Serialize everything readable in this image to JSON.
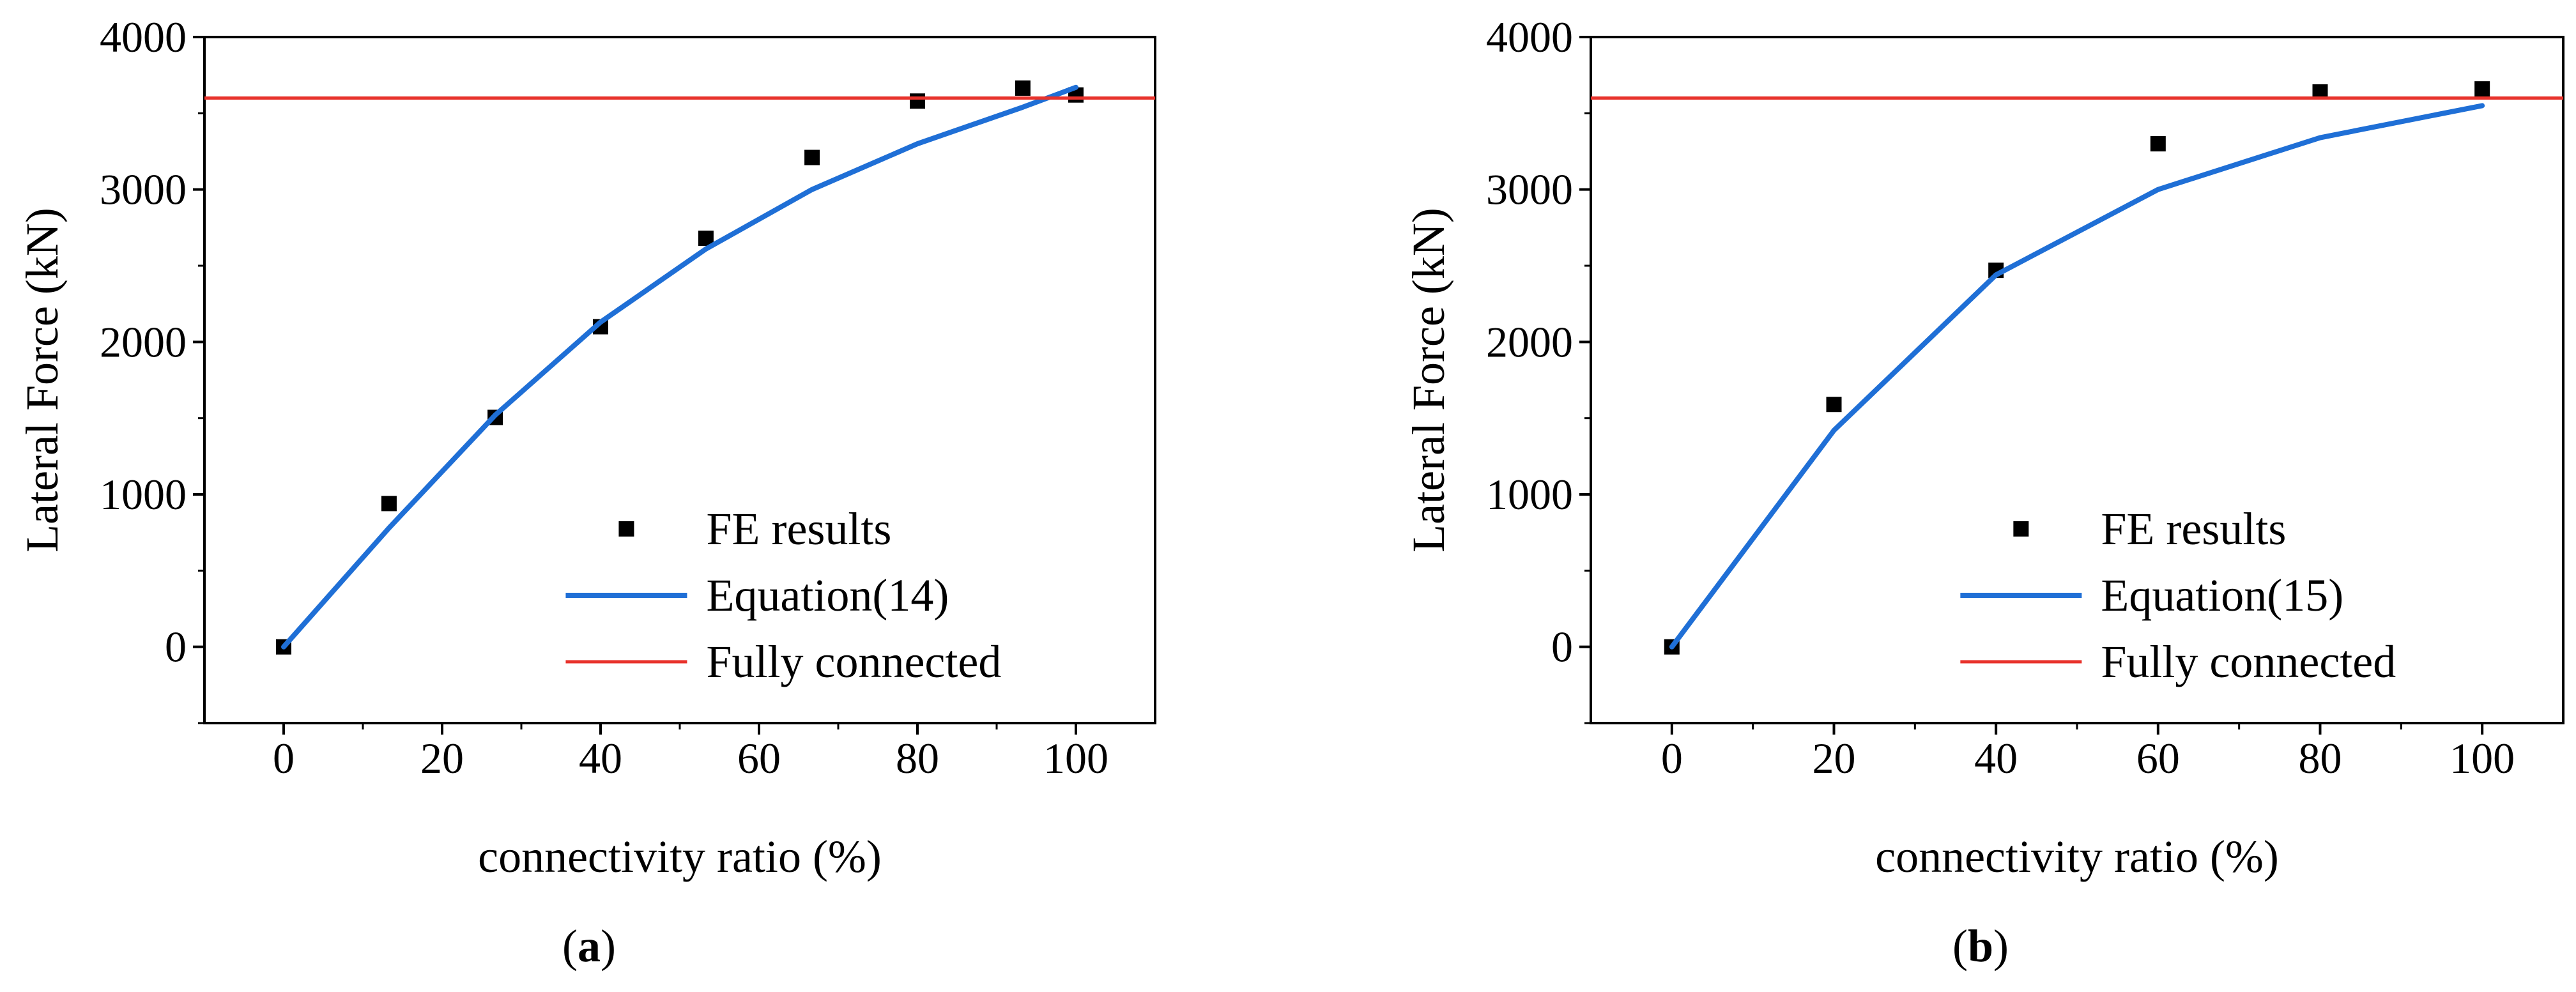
{
  "chart_data": [
    {
      "panel_label": "a",
      "type": "scatter+line",
      "xlabel": "connectivity ratio (%)",
      "ylabel": "Lateral Force (kN)",
      "xlim": [
        -10,
        110
      ],
      "ylim": [
        -500,
        4000
      ],
      "xticks": [
        0,
        20,
        40,
        60,
        80,
        100
      ],
      "yticks": [
        0,
        1000,
        2000,
        3000,
        4000
      ],
      "series": [
        {
          "name": "FE results",
          "kind": "scatter",
          "marker": "square",
          "color": "#000000",
          "x": [
            0,
            13.3,
            26.7,
            40,
            53.3,
            66.7,
            80,
            93.3,
            100
          ],
          "y": [
            0,
            940,
            1505,
            2100,
            2680,
            3210,
            3580,
            3665,
            3620
          ]
        },
        {
          "name": "Equation(14)",
          "kind": "line",
          "color": "#1f6fd6",
          "x": [
            0,
            13.3,
            26.7,
            40,
            53.3,
            66.7,
            80,
            93.3,
            100
          ],
          "y": [
            0,
            780,
            1520,
            2130,
            2610,
            3000,
            3300,
            3540,
            3670
          ]
        },
        {
          "name": "Fully connected",
          "kind": "hline",
          "color": "#e8322b",
          "y": 3600
        }
      ],
      "legend": "bottom-right"
    },
    {
      "panel_label": "b",
      "type": "scatter+line",
      "xlabel": "connectivity ratio (%)",
      "ylabel": "Lateral Force (kN)",
      "xlim": [
        -10,
        110
      ],
      "ylim": [
        -500,
        4000
      ],
      "xticks": [
        0,
        20,
        40,
        60,
        80,
        100
      ],
      "yticks": [
        0,
        1000,
        2000,
        3000,
        4000
      ],
      "series": [
        {
          "name": "FE results",
          "kind": "scatter",
          "marker": "square",
          "color": "#000000",
          "x": [
            0,
            20,
            40,
            60,
            80,
            100
          ],
          "y": [
            0,
            1590,
            2470,
            3300,
            3640,
            3660
          ]
        },
        {
          "name": "Equation(15)",
          "kind": "line",
          "color": "#1f6fd6",
          "x": [
            0,
            20,
            40,
            60,
            80,
            100
          ],
          "y": [
            0,
            1420,
            2440,
            3000,
            3340,
            3550
          ]
        },
        {
          "name": "Fully connected",
          "kind": "hline",
          "color": "#e8322b",
          "y": 3600
        }
      ],
      "legend": "bottom-right"
    }
  ]
}
